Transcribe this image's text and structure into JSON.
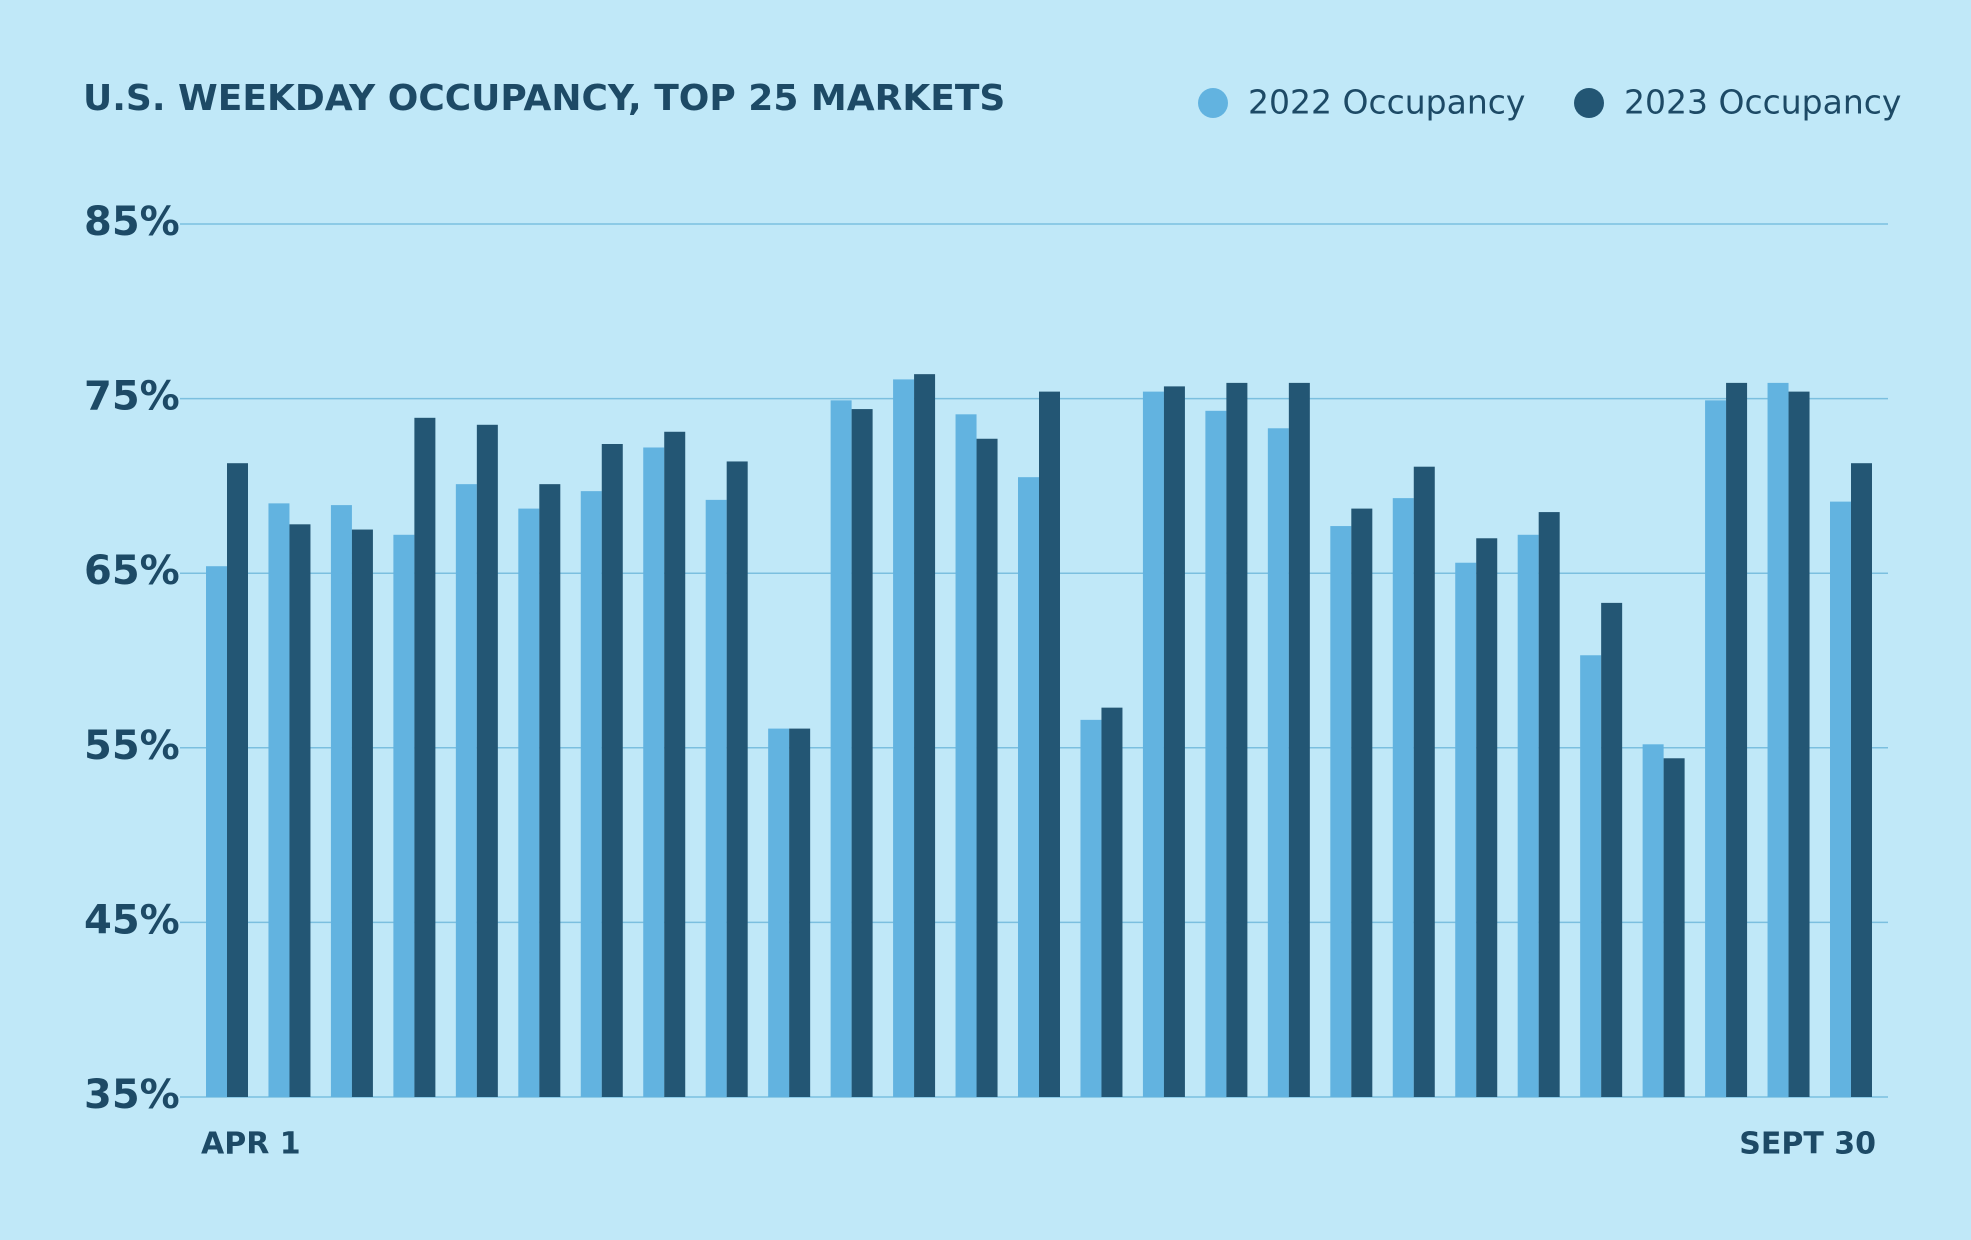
{
  "chart_data": {
    "type": "bar",
    "title": "U.S. WEEKDAY OCCUPANCY, TOP 25 MARKETS",
    "categories": [
      "APR 1",
      null,
      null,
      null,
      null,
      null,
      null,
      null,
      null,
      null,
      null,
      null,
      null,
      null,
      null,
      null,
      null,
      null,
      null,
      null,
      null,
      null,
      null,
      null,
      null,
      null,
      "SEPT 30"
    ],
    "series": [
      {
        "name": "2022 Occupancy",
        "color": "#62b3e0",
        "values": [
          65.4,
          69.0,
          68.9,
          67.2,
          70.1,
          68.7,
          69.7,
          72.2,
          69.2,
          56.1,
          74.9,
          76.1,
          74.1,
          70.5,
          56.6,
          75.4,
          74.3,
          73.3,
          67.7,
          69.3,
          65.6,
          67.2,
          60.3,
          55.2,
          74.9,
          75.9,
          69.1
        ]
      },
      {
        "name": "2023 Occupancy",
        "color": "#235674",
        "values": [
          71.3,
          67.8,
          67.5,
          73.9,
          73.5,
          70.1,
          72.4,
          73.1,
          71.4,
          56.1,
          74.4,
          76.4,
          72.7,
          75.4,
          57.3,
          75.7,
          75.9,
          75.9,
          68.7,
          71.1,
          67.0,
          68.5,
          63.3,
          54.4,
          75.9,
          75.4,
          71.3
        ]
      }
    ],
    "ylim": [
      35,
      85
    ],
    "yticks": [
      {
        "value": 35,
        "label": "35%"
      },
      {
        "value": 45,
        "label": "45%"
      },
      {
        "value": 55,
        "label": "55%"
      },
      {
        "value": 65,
        "label": "65%"
      },
      {
        "value": 75,
        "label": "75%"
      },
      {
        "value": 85,
        "label": "85%"
      }
    ],
    "grid": true,
    "legend": "top-right"
  }
}
